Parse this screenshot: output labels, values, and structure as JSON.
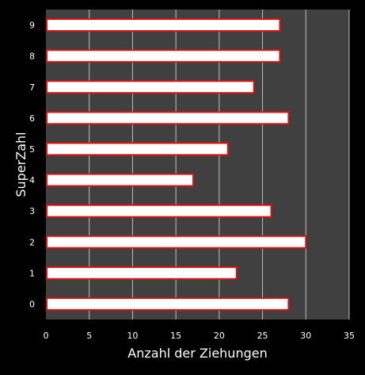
{
  "colors": {
    "background": "#000000",
    "plot_background": "#404040",
    "grid": "#bfbfbf",
    "bar_fill": "#ffffff",
    "bar_stroke": "#dd1111",
    "text": "#ffffff"
  },
  "chart_data": {
    "type": "bar",
    "orientation": "horizontal",
    "title": "",
    "xlabel": "Anzahl der Ziehungen",
    "ylabel": "SuperZahl",
    "categories": [
      "0",
      "1",
      "2",
      "3",
      "4",
      "5",
      "6",
      "7",
      "8",
      "9"
    ],
    "values": [
      28,
      22,
      30,
      26,
      17,
      21,
      28,
      24,
      27,
      27
    ],
    "xlim": [
      0,
      35
    ],
    "xticks": [
      "0",
      "5",
      "10",
      "15",
      "20",
      "25",
      "30",
      "35"
    ],
    "grid": true,
    "legend": "none"
  }
}
